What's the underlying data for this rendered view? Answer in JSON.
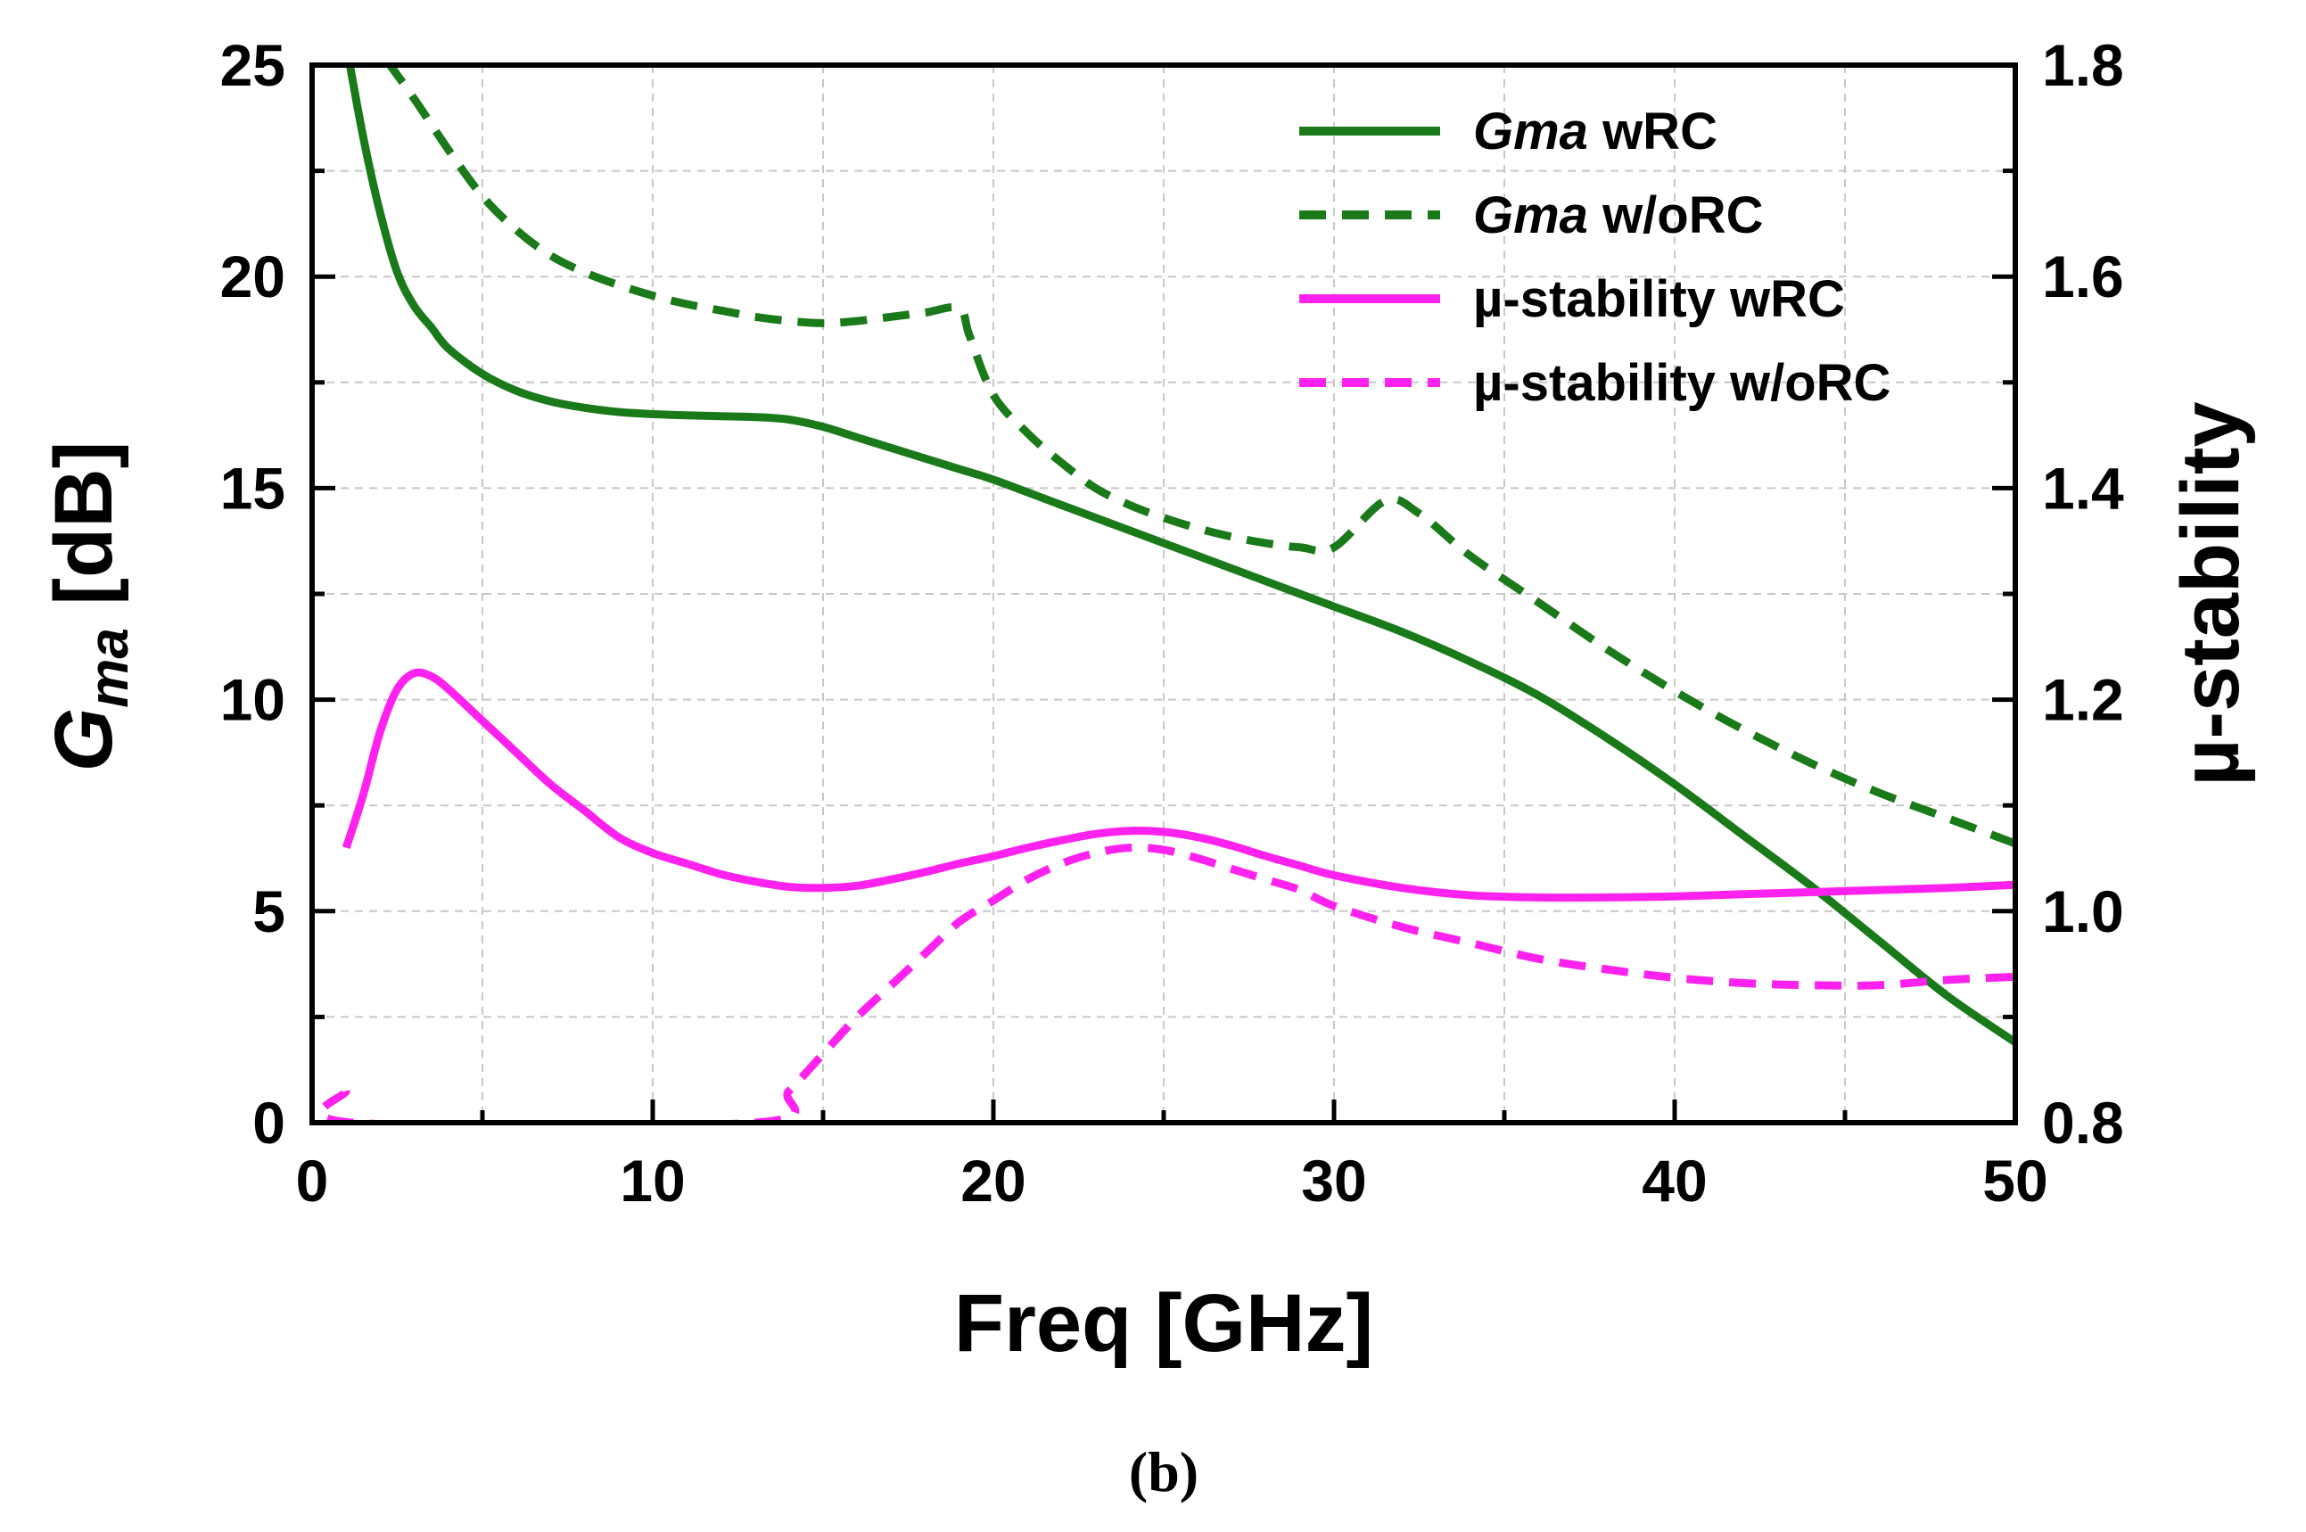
{
  "chart_data": {
    "type": "line",
    "caption": "(b)",
    "xlabel": "Freq [GHz]",
    "ylabel_left": {
      "main": "G",
      "sub": "ma",
      "rest": " [dB]"
    },
    "ylabel_right": "µ-stability",
    "xlim": [
      0,
      50
    ],
    "ylim_left": [
      0,
      25
    ],
    "ylim_right": [
      0.8,
      1.8
    ],
    "x_ticks": [
      "0",
      "10",
      "20",
      "30",
      "40",
      "50"
    ],
    "y_ticks_left": [
      "0",
      "5",
      "10",
      "15",
      "20",
      "25"
    ],
    "y_ticks_right": [
      "0.8",
      "1.0",
      "1.2",
      "1.4",
      "1.6",
      "1.8"
    ],
    "grid": true,
    "legend_position": "top-right",
    "series": [
      {
        "name": "Gma wRC",
        "legend": {
          "italic": "Gma",
          "rest": " wRC"
        },
        "axis": "left",
        "style": "solid",
        "color": "#1a7a1a",
        "x": [
          1,
          1.5,
          2,
          2.5,
          3,
          3.5,
          4,
          5,
          6,
          7,
          8,
          9,
          10,
          11,
          12,
          13,
          14,
          15,
          16,
          17,
          18,
          19,
          20,
          22,
          24,
          26,
          28,
          30,
          32,
          34,
          36,
          38,
          40,
          42,
          44,
          46,
          48,
          50
        ],
        "y": [
          25.5,
          23.3,
          21.5,
          20.1,
          19.3,
          18.8,
          18.3,
          17.7,
          17.3,
          17.05,
          16.9,
          16.8,
          16.75,
          16.72,
          16.7,
          16.68,
          16.62,
          16.45,
          16.2,
          15.95,
          15.7,
          15.45,
          15.2,
          14.6,
          14.0,
          13.4,
          12.8,
          12.2,
          11.6,
          10.9,
          10.1,
          9.1,
          8.0,
          6.8,
          5.6,
          4.3,
          3.0,
          1.9
        ]
      },
      {
        "name": "Gma w/oRC",
        "legend": {
          "italic": "Gma",
          "rest": " w/oRC"
        },
        "axis": "left",
        "style": "dashed",
        "color": "#1a7a1a",
        "x": [
          2.2,
          3,
          4,
          5,
          6,
          7,
          8,
          9,
          10,
          11,
          12,
          13,
          14,
          15,
          16,
          17,
          18,
          19,
          19.3,
          20,
          21,
          22,
          23,
          24,
          25,
          26,
          27,
          28,
          29,
          30,
          31.5,
          32.5,
          34,
          36,
          38,
          40,
          42,
          44,
          46,
          48,
          50
        ],
        "y": [
          25.1,
          24.2,
          23.0,
          21.9,
          21.1,
          20.5,
          20.1,
          19.8,
          19.55,
          19.35,
          19.2,
          19.05,
          18.95,
          18.9,
          18.95,
          19.05,
          19.15,
          19.25,
          18.6,
          17.2,
          16.3,
          15.6,
          15.0,
          14.6,
          14.3,
          14.05,
          13.85,
          13.7,
          13.6,
          13.6,
          14.7,
          14.4,
          13.4,
          12.3,
          11.2,
          10.2,
          9.3,
          8.5,
          7.8,
          7.2,
          6.6
        ]
      },
      {
        "name": "µ-stability wRC",
        "legend": {
          "italic": "",
          "rest": "µ-stability wRC"
        },
        "axis": "right",
        "style": "solid",
        "color": "#ff22ee",
        "x": [
          1,
          1.5,
          2,
          2.5,
          3,
          3.5,
          4,
          5,
          6,
          7,
          8,
          9,
          10,
          11,
          12,
          13,
          14,
          15,
          16,
          17,
          18,
          19,
          20,
          21,
          22,
          23,
          24,
          25,
          26,
          27,
          28,
          29,
          30,
          32,
          34,
          36,
          38,
          40,
          42,
          44,
          46,
          48,
          50
        ],
        "y": [
          1.06,
          1.11,
          1.17,
          1.21,
          1.225,
          1.222,
          1.21,
          1.18,
          1.15,
          1.12,
          1.095,
          1.07,
          1.055,
          1.045,
          1.035,
          1.028,
          1.023,
          1.022,
          1.024,
          1.03,
          1.037,
          1.045,
          1.052,
          1.06,
          1.067,
          1.073,
          1.076,
          1.075,
          1.07,
          1.062,
          1.052,
          1.043,
          1.034,
          1.022,
          1.015,
          1.013,
          1.013,
          1.014,
          1.016,
          1.018,
          1.02,
          1.022,
          1.025
        ]
      },
      {
        "name": "µ-stability w/oRC",
        "legend": {
          "italic": "",
          "rest": "µ-stability w/oRC"
        },
        "axis": "right",
        "style": "dashed",
        "color": "#ff22ee",
        "x": [
          1,
          1.2,
          13,
          14,
          15,
          16,
          17,
          18,
          19,
          20,
          21,
          22,
          23,
          24,
          25,
          26,
          27,
          28,
          29,
          30,
          32,
          34,
          36,
          38,
          40,
          42,
          44,
          46,
          48,
          50
        ],
        "y": [
          0.83,
          0.8,
          0.8,
          0.83,
          0.865,
          0.9,
          0.93,
          0.96,
          0.99,
          1.01,
          1.03,
          1.045,
          1.055,
          1.06,
          1.058,
          1.05,
          1.04,
          1.03,
          1.02,
          1.005,
          0.985,
          0.97,
          0.955,
          0.945,
          0.937,
          0.932,
          0.93,
          0.93,
          0.935,
          0.938
        ]
      }
    ]
  }
}
